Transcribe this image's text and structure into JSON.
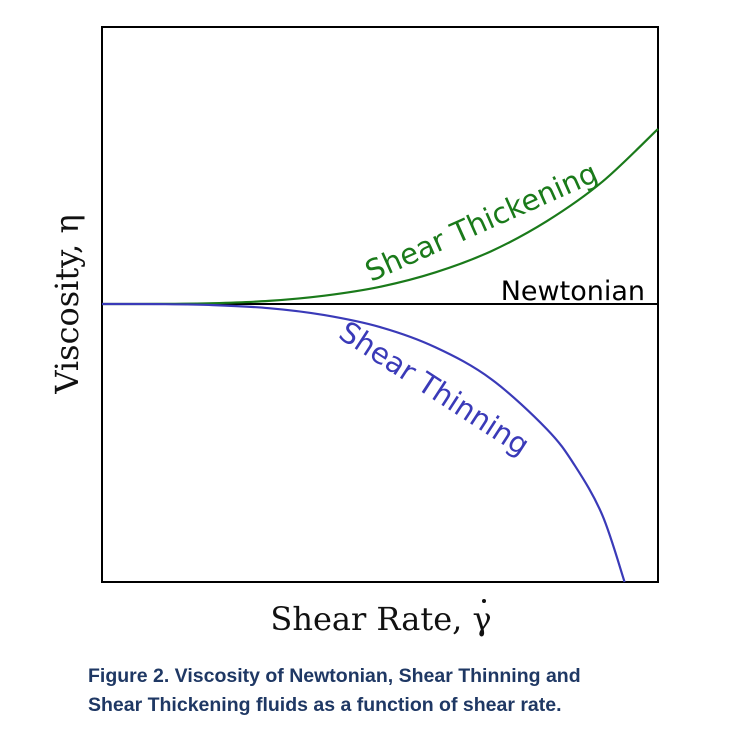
{
  "chart_data": {
    "type": "line",
    "xlabel": "Shear Rate, γ",
    "ylabel": "Viscosity, η",
    "series": [
      {
        "name": "Newtonian",
        "color": "#000000",
        "x": [
          0,
          1
        ],
        "y": [
          0,
          0
        ]
      },
      {
        "name": "Shear Thickening",
        "color": "#1a7a1a",
        "x": [
          0,
          0.1,
          0.2,
          0.3,
          0.4,
          0.5,
          0.6,
          0.7,
          0.8,
          0.9,
          1.0
        ],
        "y": [
          0,
          0.0003,
          0.003,
          0.011,
          0.03,
          0.062,
          0.114,
          0.19,
          0.298,
          0.44,
          0.63
        ]
      },
      {
        "name": "Shear Thinning",
        "color": "#3a3ab8",
        "x": [
          0,
          0.1,
          0.2,
          0.3,
          0.4,
          0.5,
          0.6,
          0.7,
          0.8,
          0.85,
          0.9,
          0.94
        ],
        "y": [
          0,
          -0.0005,
          -0.004,
          -0.015,
          -0.04,
          -0.083,
          -0.156,
          -0.27,
          -0.45,
          -0.58,
          -0.76,
          -1.0
        ]
      }
    ]
  },
  "caption": {
    "line1": "Figure 2. Viscosity of Newtonian, Shear Thinning and",
    "line2": "Shear Thickening fluids as a function of shear rate."
  }
}
